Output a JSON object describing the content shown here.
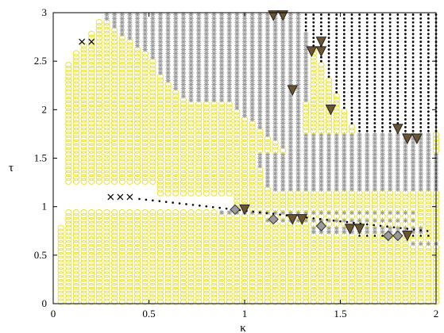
{
  "chart_data": {
    "type": "scatter",
    "title": "",
    "xlabel": "κ",
    "ylabel": "τ",
    "xlim": [
      0,
      2
    ],
    "ylim": [
      0,
      3
    ],
    "xticks": [
      0,
      0.5,
      1,
      1.5,
      2
    ],
    "yticks": [
      0,
      0.5,
      1,
      1.5,
      2,
      2.5,
      3
    ],
    "xtick_labels": [
      "0",
      "0.5",
      "1",
      "1.5",
      "2"
    ],
    "ytick_labels": [
      "0",
      "0.5",
      "1",
      "1.5",
      "2",
      "2.5",
      "3"
    ],
    "grid": false,
    "legend": "none",
    "grid_step": 0.04,
    "series": [
      {
        "marker": "circle-open",
        "color": "#e8e33a",
        "description_region": "fills plane except gaps",
        "regions": [
          {
            "x": [
              0,
              2
            ],
            "y": [
              0,
              3
            ]
          }
        ]
      },
      {
        "marker": "asterisk",
        "color": "#9a9a9a",
        "regions": [
          {
            "x": [
              0.38,
              2.0
            ],
            "y": [
              2.45,
              3.0
            ],
            "boundary": "upper-wedge"
          }
        ]
      },
      {
        "marker": "dot",
        "color": "#000000",
        "regions": [
          {
            "x": [
              1.3,
              2.0
            ],
            "y": [
              1.7,
              3.0
            ]
          }
        ]
      },
      {
        "marker": "x",
        "color": "#000000",
        "points": [
          [
            0.15,
            2.7
          ],
          [
            0.2,
            2.7
          ],
          [
            0.3,
            1.1
          ],
          [
            0.35,
            1.1
          ],
          [
            0.4,
            1.1
          ]
        ]
      },
      {
        "marker": "triangle-down",
        "color": "#6b5530",
        "points": [
          [
            1.15,
            2.97
          ],
          [
            1.2,
            2.97
          ],
          [
            1.4,
            2.7
          ],
          [
            1.35,
            2.6
          ],
          [
            1.4,
            2.6
          ],
          [
            1.25,
            2.2
          ],
          [
            1.45,
            2.0
          ],
          [
            1.8,
            1.8
          ],
          [
            1.85,
            1.7
          ],
          [
            1.9,
            1.7
          ],
          [
            1.0,
            0.97
          ],
          [
            1.25,
            0.87
          ],
          [
            1.3,
            0.87
          ],
          [
            1.55,
            0.77
          ],
          [
            1.6,
            0.77
          ],
          [
            1.85,
            0.7
          ]
        ]
      },
      {
        "marker": "diamond",
        "color": "#9a9a9a",
        "points": [
          [
            0.95,
            0.97
          ],
          [
            1.15,
            0.87
          ],
          [
            1.4,
            0.8
          ],
          [
            1.75,
            0.7
          ],
          [
            1.8,
            0.7
          ]
        ]
      }
    ]
  }
}
